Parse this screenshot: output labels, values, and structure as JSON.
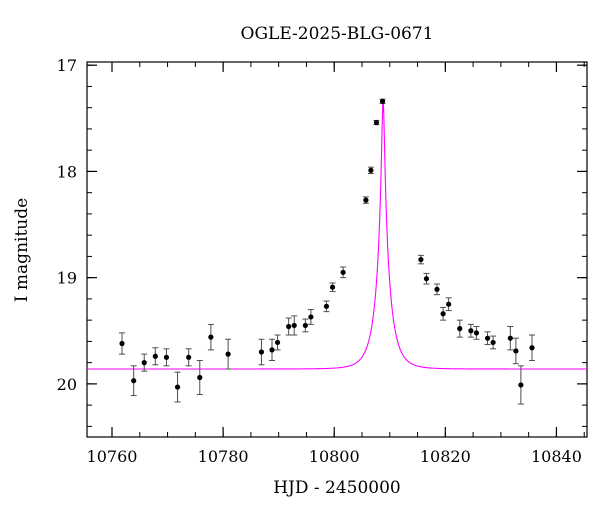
{
  "chart_data": {
    "type": "scatter",
    "title": "OGLE-2025-BLG-0671",
    "xlabel": "HJD - 2450000",
    "ylabel": "I magnitude",
    "xlim": [
      10755.5,
      10845.5
    ],
    "ylim": [
      20.5,
      16.97
    ],
    "y_inverted": true,
    "grid": false,
    "x_major_ticks": [
      10760,
      10780,
      10800,
      10820,
      10840
    ],
    "x_tick_labels": [
      "10760",
      "10780",
      "10800",
      "10820",
      "10840"
    ],
    "x_minor_step": 5,
    "y_major_ticks": [
      17,
      18,
      19,
      20
    ],
    "y_tick_labels": [
      "17",
      "18",
      "19",
      "20"
    ],
    "y_minor_step": 0.2,
    "colors": {
      "data": "#000000",
      "errorbar": "#4d4d4d",
      "model": "#ff00ff",
      "axes": "#000000"
    },
    "series": [
      {
        "kind": "points_with_errorbars",
        "x": [
          10761.8,
          10763.9,
          10765.8,
          10767.8,
          10769.8,
          10771.8,
          10773.8,
          10775.8,
          10777.8,
          10780.9,
          10786.9,
          10788.8,
          10789.8,
          10791.8,
          10792.8,
          10794.8,
          10795.8,
          10798.6,
          10799.7,
          10801.6,
          10805.7,
          10806.6,
          10807.6,
          10808.7,
          10815.6,
          10816.6,
          10818.5,
          10819.6,
          10820.6,
          10822.6,
          10824.6,
          10825.6,
          10827.6,
          10828.6,
          10831.7,
          10832.7,
          10833.6,
          10835.6
        ],
        "y": [
          19.62,
          19.97,
          19.8,
          19.74,
          19.75,
          20.03,
          19.75,
          19.94,
          19.56,
          19.72,
          19.7,
          19.68,
          19.61,
          19.46,
          19.45,
          19.45,
          19.37,
          19.27,
          19.09,
          18.95,
          18.27,
          17.99,
          17.54,
          17.34,
          18.83,
          19.01,
          19.11,
          19.34,
          19.25,
          19.48,
          19.5,
          19.52,
          19.57,
          19.61,
          19.57,
          19.69,
          20.01,
          19.66
        ],
        "err": [
          0.1,
          0.14,
          0.08,
          0.08,
          0.08,
          0.14,
          0.08,
          0.16,
          0.12,
          0.14,
          0.12,
          0.1,
          0.07,
          0.08,
          0.09,
          0.06,
          0.07,
          0.05,
          0.04,
          0.05,
          0.03,
          0.03,
          0.02,
          0.02,
          0.04,
          0.05,
          0.05,
          0.06,
          0.06,
          0.08,
          0.06,
          0.06,
          0.06,
          0.06,
          0.11,
          0.12,
          0.18,
          0.12
        ]
      },
      {
        "kind": "model_curve",
        "peak_time": 10808.8,
        "peak_mag": 17.33,
        "baseline_mag": 19.86,
        "time_scale": 2.35
      }
    ]
  }
}
